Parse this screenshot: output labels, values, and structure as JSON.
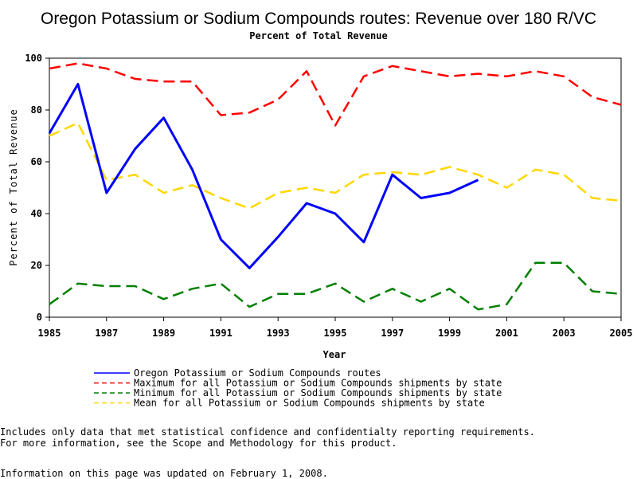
{
  "chart_data": {
    "type": "line",
    "title": "Oregon Potassium or Sodium Compounds routes: Revenue over 180 R/VC",
    "subtitle": "Percent of Total Revenue",
    "xlabel": "Year",
    "ylabel": "Percent of Total Revenue",
    "xlim": [
      1985,
      2005
    ],
    "ylim": [
      0,
      100
    ],
    "x_ticks": [
      "1985",
      "1987",
      "1989",
      "1991",
      "1993",
      "1995",
      "1997",
      "1999",
      "2001",
      "2003",
      "2005"
    ],
    "y_ticks": [
      "0",
      "20",
      "40",
      "60",
      "80",
      "100"
    ],
    "grid": false,
    "legend_position": "bottom",
    "series": [
      {
        "name": "Oregon Potassium or Sodium Compounds routes",
        "color": "#0000ff",
        "style": "solid",
        "x": [
          1985,
          1986,
          1987,
          1988,
          1989,
          1990,
          1991,
          1992,
          1993,
          1994,
          1995,
          1996,
          1997,
          1998,
          1999,
          2000
        ],
        "values": [
          71,
          90,
          48,
          65,
          77,
          57,
          30,
          19,
          31,
          44,
          40,
          29,
          55,
          46,
          48,
          53
        ]
      },
      {
        "name": "Maximum for all Potassium or Sodium Compounds shipments by state",
        "color": "#ff0000",
        "style": "dashed",
        "x": [
          1985,
          1986,
          1987,
          1988,
          1989,
          1990,
          1991,
          1992,
          1993,
          1994,
          1995,
          1996,
          1997,
          1998,
          1999,
          2000,
          2001,
          2002,
          2003,
          2004,
          2005
        ],
        "values": [
          96,
          98,
          96,
          92,
          91,
          91,
          78,
          79,
          84,
          95,
          74,
          93,
          97,
          95,
          93,
          94,
          93,
          95,
          93,
          85,
          82
        ]
      },
      {
        "name": "Minimum for all Potassium or Sodium Compounds shipments by state",
        "color": "#008000",
        "style": "dashed",
        "x": [
          1985,
          1986,
          1987,
          1988,
          1989,
          1990,
          1991,
          1992,
          1993,
          1994,
          1995,
          1996,
          1997,
          1998,
          1999,
          2000,
          2001,
          2002,
          2003,
          2004,
          2005
        ],
        "values": [
          5,
          13,
          12,
          12,
          7,
          11,
          13,
          4,
          9,
          9,
          13,
          6,
          11,
          6,
          11,
          3,
          5,
          21,
          21,
          10,
          9
        ]
      },
      {
        "name": "Mean for all Potassium or Sodium Compounds shipments by state",
        "color": "#ffd700",
        "style": "dashed",
        "x": [
          1985,
          1986,
          1987,
          1988,
          1989,
          1990,
          1991,
          1992,
          1993,
          1994,
          1995,
          1996,
          1997,
          1998,
          1999,
          2000,
          2001,
          2002,
          2003,
          2004,
          2005
        ],
        "values": [
          70,
          75,
          53,
          55,
          48,
          51,
          46,
          42,
          48,
          50,
          48,
          55,
          56,
          55,
          58,
          55,
          50,
          57,
          55,
          46,
          45
        ]
      }
    ]
  },
  "footnotes": {
    "line1": "Includes only data that met statistical confidence and confidentialty reporting requirements.",
    "line2": "For more information, see the Scope and Methodology for this product.",
    "line3": "Information on this page was updated on February 1, 2008."
  }
}
